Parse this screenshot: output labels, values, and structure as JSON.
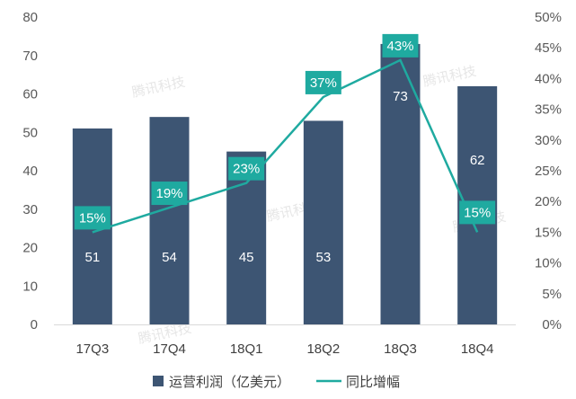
{
  "chart_data": {
    "type": "bar",
    "categories": [
      "17Q3",
      "17Q4",
      "18Q1",
      "18Q2",
      "18Q3",
      "18Q4"
    ],
    "series": [
      {
        "name": "运营利润（亿美元）",
        "type": "bar",
        "axis": "left",
        "values": [
          51,
          54,
          45,
          53,
          73,
          62
        ],
        "color": "#3d5573"
      },
      {
        "name": "同比增幅",
        "type": "line",
        "axis": "right",
        "values": [
          15,
          19,
          23,
          37,
          43,
          15
        ],
        "value_labels": [
          "15%",
          "19%",
          "23%",
          "37%",
          "43%",
          "15%"
        ],
        "color": "#1faaa0"
      }
    ],
    "left_axis": {
      "min": 0,
      "max": 80,
      "step": 10,
      "ticks": [
        "0",
        "10",
        "20",
        "30",
        "40",
        "50",
        "60",
        "70",
        "80"
      ]
    },
    "right_axis": {
      "min": 0,
      "max": 50,
      "step": 5,
      "ticks": [
        "0%",
        "5%",
        "10%",
        "15%",
        "20%",
        "25%",
        "30%",
        "35%",
        "40%",
        "45%",
        "50%"
      ]
    },
    "grid": false,
    "legend_position": "bottom",
    "watermark": "腾讯科技"
  }
}
